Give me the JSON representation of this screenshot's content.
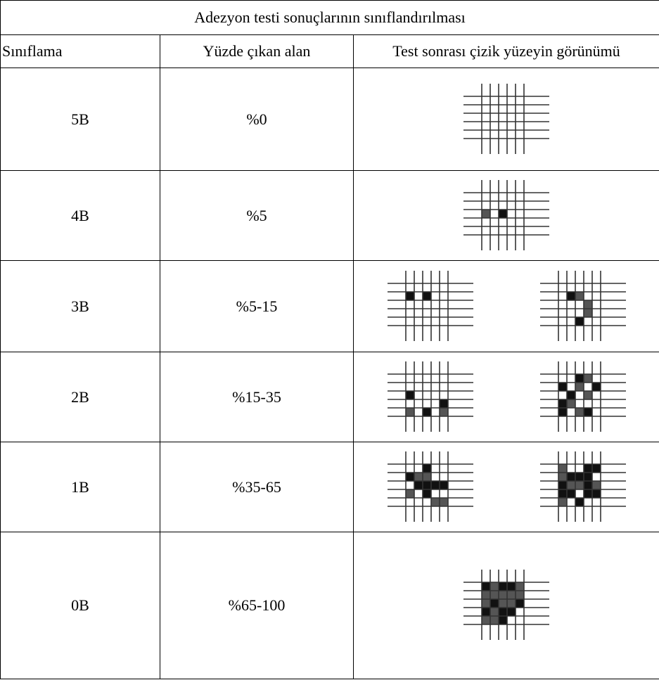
{
  "table": {
    "title": "Adezyon testi sonuçlarının sınıflandırılması",
    "headers": [
      "Sınıflama",
      "Yüzde çıkan alan",
      "Test sonrası çizik yüzeyin görünümü"
    ],
    "rows": [
      [
        "5B",
        "%0"
      ],
      [
        "4B",
        "%5"
      ],
      [
        "3B",
        "%5-15"
      ],
      [
        "2B",
        "%15-35"
      ],
      [
        "1B",
        "%35-65"
      ],
      [
        "0B",
        "%65-100"
      ]
    ]
  }
}
